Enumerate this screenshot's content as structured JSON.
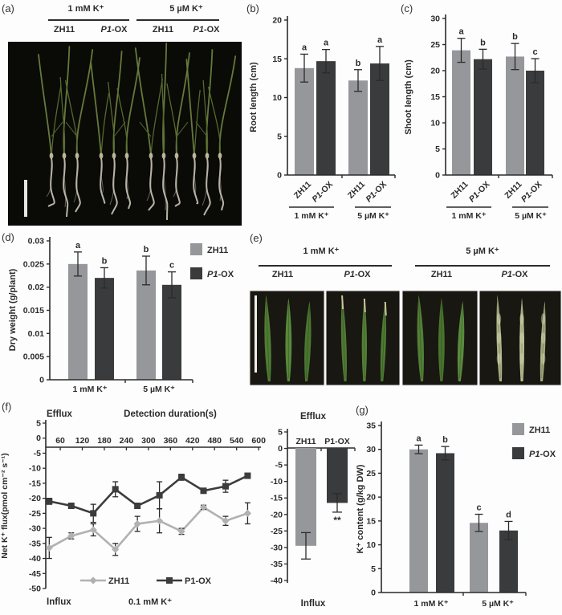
{
  "panels": {
    "a": {
      "letter": "(a)",
      "conditions": [
        {
          "label": "1 mM K⁺",
          "genotypes": [
            "ZH11",
            "P1-OX"
          ]
        },
        {
          "label": "5 µM K⁺",
          "genotypes": [
            "ZH11",
            "P1-OX"
          ]
        }
      ],
      "scale_bar": "scale-bar"
    },
    "b": {
      "letter": "(b)"
    },
    "c": {
      "letter": "(c)"
    },
    "d": {
      "letter": "(d)"
    },
    "e": {
      "letter": "(e)",
      "conditions": [
        {
          "label": "1 mM K⁺",
          "genotypes": [
            "ZH11",
            "P1-OX"
          ]
        },
        {
          "label": "5 µM K⁺",
          "genotypes": [
            "ZH11",
            "P1-OX"
          ]
        }
      ],
      "scale_bar": "scale-bar"
    },
    "f": {
      "letter": "(f)"
    },
    "g": {
      "letter": "(g)"
    }
  },
  "colors": {
    "bar_light": "#96979a",
    "bar_dark": "#3a3b3d",
    "line_zh11": "#b0b1b3",
    "line_p1ox": "#3b3c3e",
    "text": "#2b2b2b",
    "photo_bg_a": "#0a0a07",
    "photo_bg_e": "#191711"
  },
  "chart_data": [
    {
      "id": "b",
      "type": "bar",
      "panel": "(b)",
      "ylabel": "Root length (cm)",
      "ylim": [
        0,
        20
      ],
      "yticks": [
        0,
        5,
        10,
        15,
        20
      ],
      "grid": false,
      "bars": [
        {
          "category": "ZH11",
          "group": "1 mM K⁺",
          "value": 13.8,
          "error": 1.8,
          "letter": "a",
          "color": "light"
        },
        {
          "category": "P1-OX",
          "group": "1 mM K⁺",
          "value": 14.7,
          "error": 1.5,
          "letter": "a",
          "color": "dark"
        },
        {
          "category": "ZH11",
          "group": "5 µM K⁺",
          "value": 12.2,
          "error": 1.4,
          "letter": "b",
          "color": "light"
        },
        {
          "category": "P1-OX",
          "group": "5 µM K⁺",
          "value": 14.4,
          "error": 2.2,
          "letter": "a",
          "color": "dark"
        }
      ],
      "group_labels": [
        "1 mM K⁺",
        "5 µM K⁺"
      ]
    },
    {
      "id": "c",
      "type": "bar",
      "panel": "(c)",
      "ylabel": "Shoot length (cm)",
      "ylim": [
        0,
        30
      ],
      "yticks": [
        0,
        5,
        10,
        15,
        20,
        25,
        30
      ],
      "grid": false,
      "bars": [
        {
          "category": "ZH11",
          "group": "1 mM K⁺",
          "value": 23.9,
          "error": 2.3,
          "letter": "a",
          "color": "light"
        },
        {
          "category": "P1-OX",
          "group": "1 mM K⁺",
          "value": 22.2,
          "error": 1.9,
          "letter": "b",
          "color": "dark"
        },
        {
          "category": "ZH11",
          "group": "5 µM K⁺",
          "value": 22.7,
          "error": 2.5,
          "letter": "b",
          "color": "light"
        },
        {
          "category": "P1-OX",
          "group": "5 µM K⁺",
          "value": 20.0,
          "error": 2.3,
          "letter": "c",
          "color": "dark"
        }
      ],
      "group_labels": [
        "1 mM K⁺",
        "5 µM K⁺"
      ]
    },
    {
      "id": "d",
      "type": "grouped-bar",
      "panel": "(d)",
      "ylabel": "Dry weight (g/plant)",
      "ylim": [
        0,
        0.03
      ],
      "yticks": [
        0,
        0.005,
        0.01,
        0.015,
        0.02,
        0.025,
        0.03
      ],
      "categories": [
        "1 mM K⁺",
        "5 µM K⁺"
      ],
      "series": [
        {
          "name": "ZH11",
          "color": "light",
          "values": [
            0.025,
            0.0236
          ],
          "errors": [
            0.0026,
            0.0031
          ],
          "letters": [
            "a",
            "b"
          ]
        },
        {
          "name": "P1-OX",
          "color": "dark",
          "values": [
            0.022,
            0.0205
          ],
          "errors": [
            0.0022,
            0.0028
          ],
          "letters": [
            "b",
            "c"
          ]
        }
      ],
      "legend": [
        "ZH11",
        "P1-OX"
      ],
      "legend_position": "top-right"
    },
    {
      "id": "f-line",
      "type": "line",
      "panel": "(f)",
      "xlabel": "Detection duration(s)",
      "ylabel": "Net K⁺ flux(pmol cm⁻² s⁻¹)",
      "ylim": [
        -50,
        5
      ],
      "yticks": [
        5,
        0,
        -5,
        -10,
        -15,
        -20,
        -25,
        -30,
        -35,
        -40,
        -45,
        -50
      ],
      "xticks": [
        60,
        120,
        180,
        240,
        300,
        360,
        420,
        480,
        540,
        600
      ],
      "x": [
        30,
        90,
        150,
        210,
        270,
        330,
        390,
        450,
        510,
        570
      ],
      "series": [
        {
          "name": "ZH11",
          "marker": "diamond",
          "color": "light",
          "values": [
            -36.5,
            -32.5,
            -30.5,
            -37,
            -28.5,
            -27.5,
            -31,
            -23,
            -27.5,
            -25
          ],
          "errors": [
            3.5,
            1,
            2,
            2,
            2.5,
            4,
            1,
            0.7,
            1.5,
            3.5
          ]
        },
        {
          "name": "P1-OX",
          "marker": "square",
          "color": "dark",
          "values": [
            -21,
            -22.5,
            -25,
            -17,
            -22.5,
            -19,
            -13,
            -17.5,
            -16,
            -12.5
          ],
          "errors": [
            1,
            0.7,
            3,
            2.5,
            0.7,
            4.5,
            1,
            0.7,
            2,
            0.7
          ]
        }
      ],
      "legend_position": "bottom-inside",
      "annotations": {
        "top_left": "Efflux",
        "bottom_left": "Influx",
        "bottom_center": "0.1 mM K⁺"
      }
    },
    {
      "id": "f-bar",
      "type": "mini-bar",
      "panel": "(f)",
      "ylim": [
        -40,
        5
      ],
      "yticks": [
        5,
        0,
        -5,
        -10,
        -15,
        -20,
        -25,
        -30,
        -35,
        -40
      ],
      "bars": [
        {
          "category": "ZH11",
          "value": -29.5,
          "error": 4.0,
          "color": "light",
          "sig": ""
        },
        {
          "category": "P1-OX",
          "value": -16.5,
          "error": 2.8,
          "color": "dark",
          "sig": "**"
        }
      ],
      "annotations": {
        "top": "Efflux",
        "bottom": "Influx"
      }
    },
    {
      "id": "g",
      "type": "grouped-bar",
      "panel": "(g)",
      "ylabel": "K⁺ content (g/kg DW)",
      "ylim": [
        0,
        35
      ],
      "yticks": [
        0,
        5,
        10,
        15,
        20,
        25,
        30,
        35
      ],
      "categories": [
        "1 mM K⁺",
        "5 µM K⁺"
      ],
      "series": [
        {
          "name": "ZH11",
          "color": "light",
          "values": [
            30.0,
            14.6
          ],
          "errors": [
            0.9,
            1.8
          ],
          "letters": [
            "a",
            "c"
          ]
        },
        {
          "name": "P1-OX",
          "color": "dark",
          "values": [
            29.2,
            13.0
          ],
          "errors": [
            1.4,
            1.9
          ],
          "letters": [
            "b",
            "d"
          ]
        }
      ],
      "legend": [
        "ZH11",
        "P1-OX"
      ],
      "legend_position": "top-right"
    }
  ]
}
